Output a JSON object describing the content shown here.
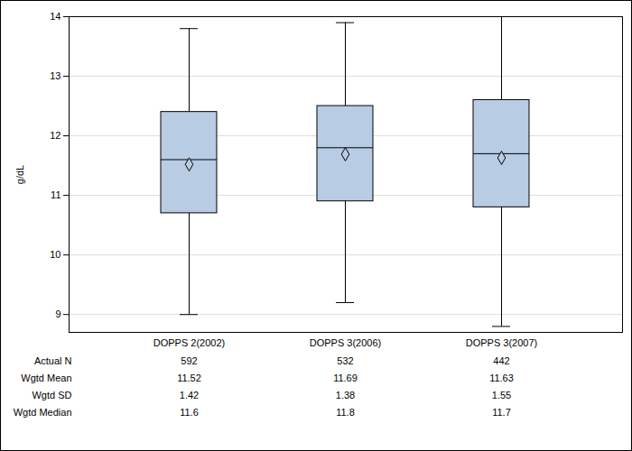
{
  "chart_data": {
    "type": "box",
    "y_label": "g/dL",
    "categories": [
      "DOPPS 2(2002)",
      "DOPPS 3(2006)",
      "DOPPS 3(2007)"
    ],
    "whisker_low": [
      9.0,
      9.2,
      8.8
    ],
    "q1": [
      10.7,
      10.9,
      10.8
    ],
    "median": [
      11.6,
      11.8,
      11.7
    ],
    "q3": [
      12.4,
      12.5,
      12.6
    ],
    "whisker_high": [
      13.8,
      13.9,
      14.0
    ],
    "mean": [
      11.52,
      11.69,
      11.63
    ],
    "color": "#b8cce4",
    "marker": "diamond",
    "ylim": [
      8.7,
      14
    ],
    "yticks": [
      9,
      10,
      11,
      12,
      13,
      14
    ],
    "grid": true,
    "table": {
      "rows": [
        {
          "label": "Actual N",
          "values": [
            592,
            532,
            442
          ]
        },
        {
          "label": "Wgtd Mean",
          "values": [
            11.52,
            11.69,
            11.63
          ]
        },
        {
          "label": "Wgtd SD",
          "values": [
            1.42,
            1.38,
            1.55
          ]
        },
        {
          "label": "Wgtd Median",
          "values": [
            11.6,
            11.8,
            11.7
          ]
        }
      ]
    }
  }
}
